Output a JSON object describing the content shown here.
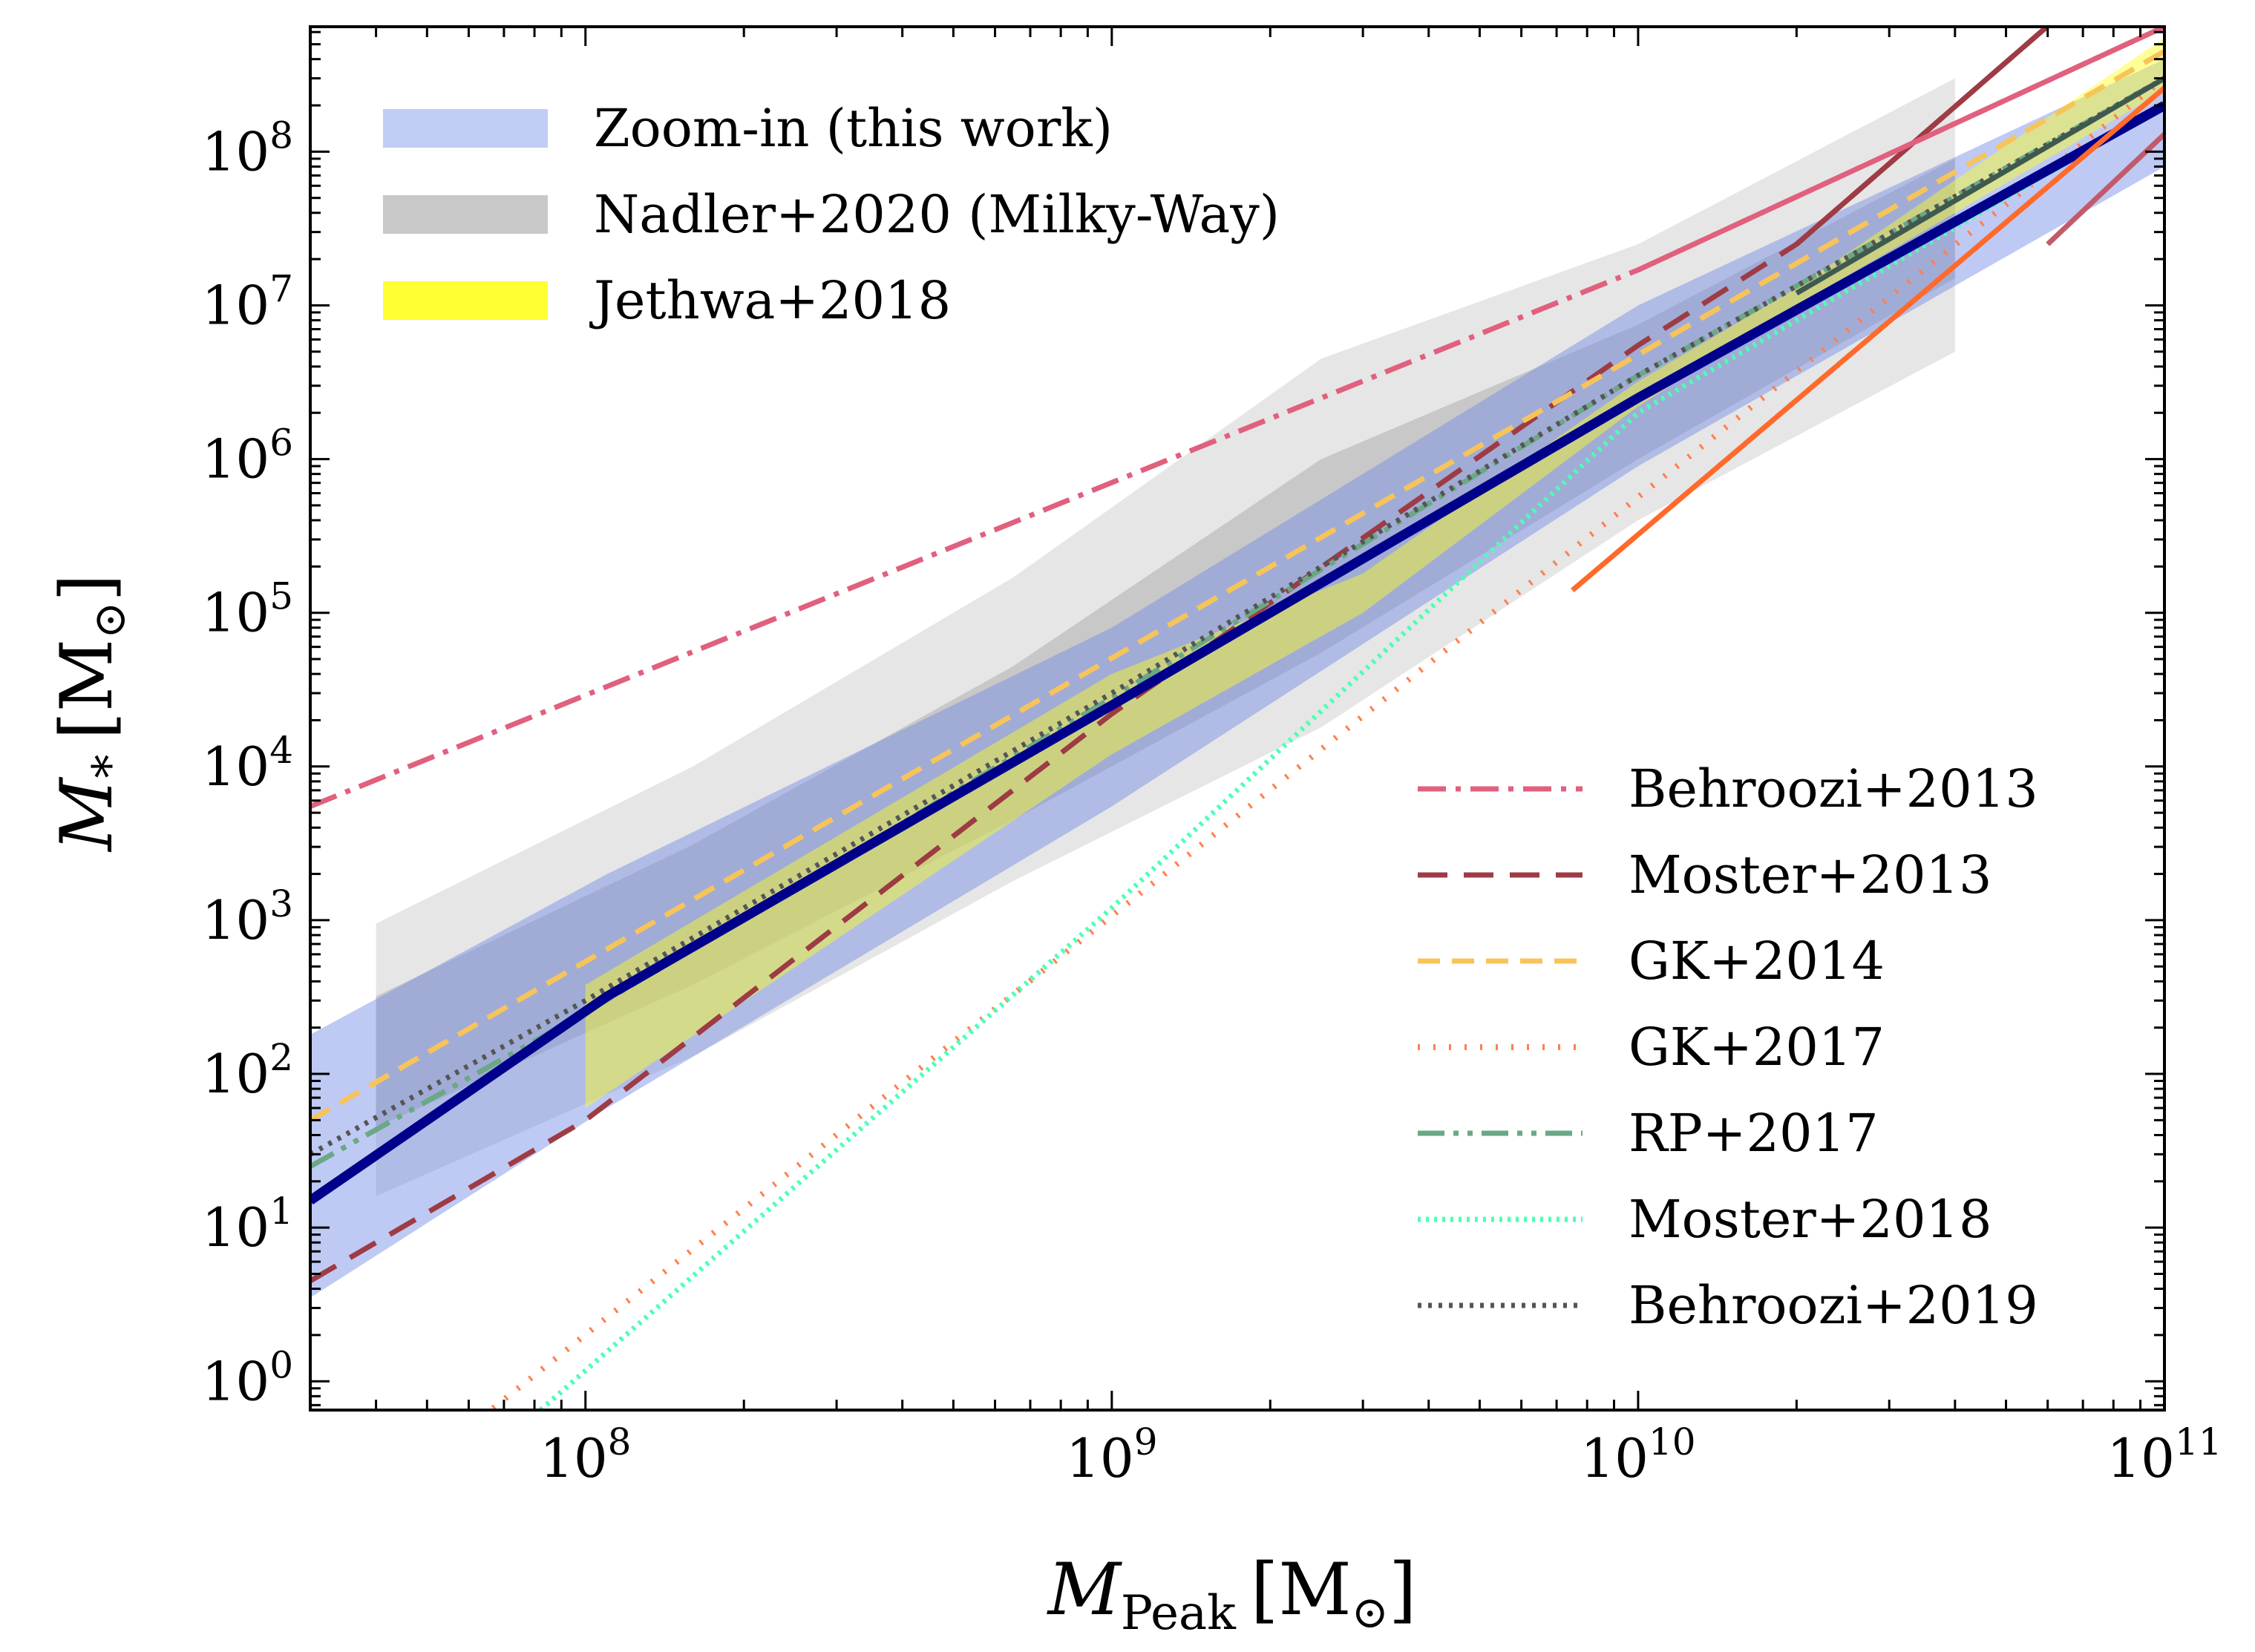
{
  "chart_data": {
    "type": "line",
    "xlabel": "M_Peak [M_⊙]",
    "ylabel": "M_* [M_⊙]",
    "xlabel_parts": {
      "main": "M",
      "sub": "Peak",
      "unit": "[M",
      "unit_sub": "⊙",
      "close": "]"
    },
    "ylabel_parts": {
      "main": "M",
      "sub": "*",
      "unit": "[M",
      "unit_sub": "⊙",
      "close": "]"
    },
    "xscale": "log",
    "yscale": "log",
    "xlim": [
      30000000.0,
      100000000000.0
    ],
    "ylim": [
      0.65,
      650000000.0
    ],
    "x_ticks": [
      {
        "base": "10",
        "exp": "8",
        "value": 100000000.0
      },
      {
        "base": "10",
        "exp": "9",
        "value": 1000000000.0
      },
      {
        "base": "10",
        "exp": "10",
        "value": 10000000000.0
      },
      {
        "base": "10",
        "exp": "11",
        "value": 100000000000.0
      }
    ],
    "y_ticks": [
      {
        "base": "10",
        "exp": "0",
        "value": 1
      },
      {
        "base": "10",
        "exp": "1",
        "value": 10
      },
      {
        "base": "10",
        "exp": "2",
        "value": 100
      },
      {
        "base": "10",
        "exp": "3",
        "value": 1000
      },
      {
        "base": "10",
        "exp": "4",
        "value": 10000
      },
      {
        "base": "10",
        "exp": "5",
        "value": 100000
      },
      {
        "base": "10",
        "exp": "6",
        "value": 1000000
      },
      {
        "base": "10",
        "exp": "7",
        "value": 10000000
      },
      {
        "base": "10",
        "exp": "8",
        "value": 100000000
      }
    ],
    "grid": false,
    "legend_bands_position": "upper-left",
    "legend_lines_position": "lower-right",
    "bands": [
      {
        "name": "Nadler+2020 (Milky-Way) outer",
        "legend": false,
        "color": "#e6e6e6",
        "opacity": 1,
        "upper": [
          [
            40000000.0,
            950
          ],
          [
            160000000.0,
            10000
          ],
          [
            650000000.0,
            170000
          ],
          [
            2500000000.0,
            4500000
          ],
          [
            10000000000.0,
            25000000
          ],
          [
            40000000000.0,
            300000000
          ]
        ],
        "lower": [
          [
            40000000.0,
            16
          ],
          [
            160000000.0,
            130
          ],
          [
            650000000.0,
            1800
          ],
          [
            2500000000.0,
            18000
          ],
          [
            10000000000.0,
            400000
          ],
          [
            40000000000.0,
            5000000
          ]
        ]
      },
      {
        "name": "Nadler+2020 (Milky-Way)",
        "legend": true,
        "color": "#c8c8c8",
        "opacity": 1,
        "upper": [
          [
            40000000.0,
            320
          ],
          [
            160000000.0,
            3100
          ],
          [
            650000000.0,
            45000
          ],
          [
            2500000000.0,
            1000000
          ],
          [
            10000000000.0,
            7500000
          ],
          [
            40000000000.0,
            90000000
          ]
        ],
        "lower": [
          [
            40000000.0,
            45
          ],
          [
            160000000.0,
            380
          ],
          [
            650000000.0,
            4500
          ],
          [
            2500000000.0,
            55000
          ],
          [
            10000000000.0,
            1000000
          ],
          [
            40000000000.0,
            15000000
          ]
        ]
      },
      {
        "name": "Zoom-in (this work)",
        "legend": true,
        "color": "#6f8ae6",
        "opacity": 0.45,
        "upper": [
          [
            30000000.0,
            180
          ],
          [
            110000000.0,
            2000
          ],
          [
            1000000000.0,
            80000
          ],
          [
            10000000000.0,
            10000000
          ],
          [
            100000000000.0,
            400000000.0
          ]
        ],
        "lower": [
          [
            30000000.0,
            3.5
          ],
          [
            110000000.0,
            60
          ],
          [
            1000000000.0,
            5500
          ],
          [
            10000000000.0,
            900000
          ],
          [
            100000000000.0,
            80000000
          ]
        ]
      },
      {
        "name": "Jethwa+2018",
        "legend": true,
        "color": "#ffff1a",
        "opacity": 0.45,
        "upper": [
          [
            100000000.0,
            380
          ],
          [
            1000000000.0,
            40000
          ],
          [
            3000000000.0,
            180000
          ],
          [
            10000000000.0,
            3200000
          ],
          [
            20000000000.0,
            13000000
          ],
          [
            100000000000.0,
            550000000.0
          ]
        ],
        "lower": [
          [
            100000000.0,
            60
          ],
          [
            1000000000.0,
            12000
          ],
          [
            3000000000.0,
            100000
          ],
          [
            10000000000.0,
            2200000
          ],
          [
            20000000000.0,
            10000000
          ],
          [
            100000000000.0,
            250000000
          ]
        ]
      }
    ],
    "series": [
      {
        "name": "Behroozi+2013",
        "legend": true,
        "color": "#e0607e",
        "width": 7,
        "dash": "38 13 7 13",
        "x": [
          30000000.0,
          10000000000.0,
          100000000000.0
        ],
        "y": [
          5500,
          17000000,
          650000000.0
        ]
      },
      {
        "name": "Moster+2013",
        "legend": true,
        "color": "#9e3b44",
        "width": 7,
        "dash": "40 22",
        "x": [
          30000000.0,
          100000000.0,
          1000000000.0,
          10000000000.0,
          20000000000.0,
          100000000000.0
        ],
        "y": [
          4.5,
          50,
          22000,
          5500000,
          25000000,
          3000000000.0
        ]
      },
      {
        "name": "GK+2014",
        "legend": true,
        "color": "#f7c45a",
        "width": 7,
        "dash": "30 16",
        "x": [
          30000000.0,
          100000000000.0
        ],
        "y": [
          50,
          450000000.0
        ]
      },
      {
        "name": "GK+2017",
        "legend": true,
        "color": "#ff7f50",
        "width": 8,
        "dash": "3 18",
        "x": [
          60000000.0,
          100000000000.0
        ],
        "y": [
          0.5,
          300000000.0
        ]
      },
      {
        "name": "RP+2017",
        "legend": true,
        "color": "#6aa886",
        "width": 7,
        "dash": "36 12 7 12 7 12",
        "x": [
          30000000.0,
          100000000.0,
          1000000000.0,
          10000000000.0,
          100000000000.0
        ],
        "y": [
          25,
          250,
          28000,
          3500000,
          300000000.0
        ]
      },
      {
        "name": "Moster+2018",
        "legend": true,
        "color": "#4dffb4",
        "width": 7,
        "dash": "4 7",
        "x": [
          80000000.0,
          1000000000.0,
          10000000000.0,
          100000000000.0
        ],
        "y": [
          0.6,
          1200,
          2000000,
          200000000
        ]
      },
      {
        "name": "Behroozi+2019",
        "legend": true,
        "color": "#555555",
        "width": 7,
        "dash": "5 9",
        "x": [
          30000000.0,
          100000000.0,
          1000000000.0,
          10000000000.0,
          100000000000.0
        ],
        "y": [
          30,
          300,
          30000,
          3500000,
          300000000.0
        ]
      },
      {
        "name": "",
        "legend": false,
        "color": "#00008b",
        "width": 13,
        "dash": "",
        "x": [
          30000000.0,
          110000000.0,
          1000000000.0,
          10000000000.0,
          100000000000.0
        ],
        "y": [
          15,
          320,
          25000,
          2500000,
          200000000
        ]
      },
      {
        "name": "",
        "legend": false,
        "color": "#ff6a2b",
        "width": 7,
        "dash": "",
        "x": [
          7500000000.0,
          100000000000.0
        ],
        "y": [
          140000,
          260000000
        ]
      },
      {
        "name": "",
        "legend": false,
        "color": "#9e3b44",
        "width": 7,
        "dash": "",
        "x": [
          20000000000.0,
          100000000000.0
        ],
        "y": [
          25000000,
          3000000000.0
        ]
      },
      {
        "name": "",
        "legend": false,
        "color": "#e0607e",
        "width": 7,
        "dash": "",
        "x": [
          10000000000.0,
          100000000000.0
        ],
        "y": [
          17000000,
          650000000.0
        ]
      },
      {
        "name": "",
        "legend": false,
        "color": "#3e5a4f",
        "width": 7,
        "dash": "",
        "x": [
          20000000000.0,
          100000000000.0
        ],
        "y": [
          12000000,
          300000000.0
        ]
      },
      {
        "name": "",
        "legend": false,
        "color": "#c25a6a",
        "width": 7,
        "dash": "",
        "x": [
          60000000000.0,
          100000000000.0
        ],
        "y": [
          25000000,
          130000000
        ]
      }
    ]
  }
}
